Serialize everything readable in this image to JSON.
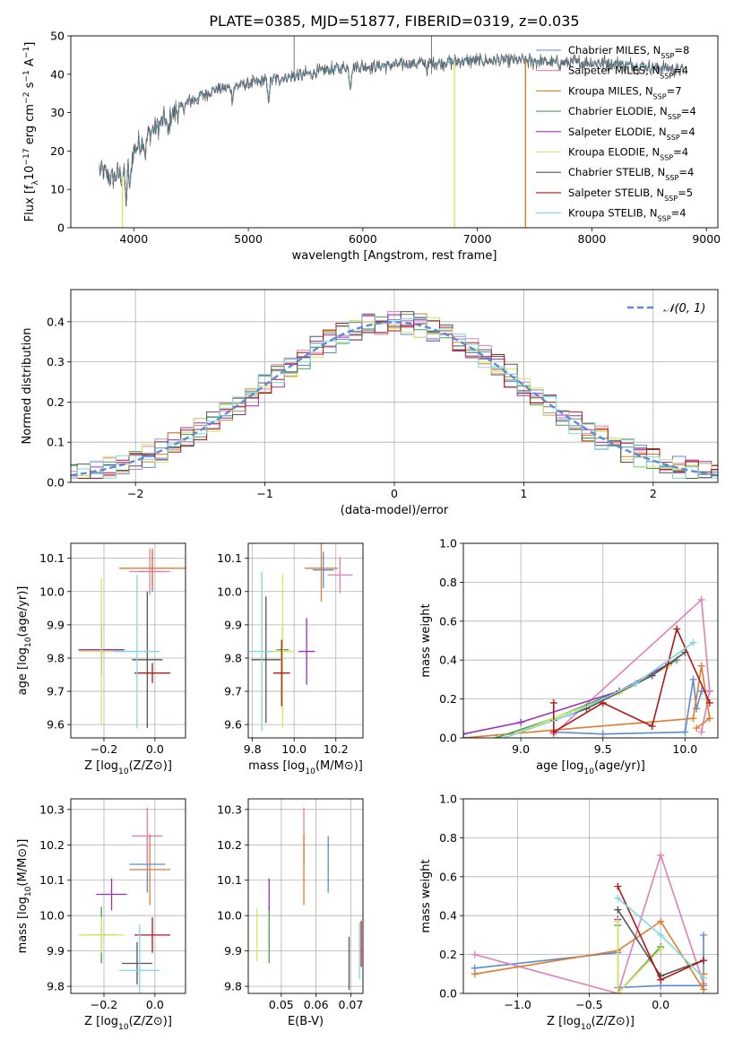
{
  "page_title": "PLATE=0385, MJD=51877, FIBERID=0319, z=0.035",
  "colors": {
    "chabrier_miles": "#5b8bd6",
    "salpeter_miles": "#e07fb7",
    "kroupa_miles": "#e07b2e",
    "chabrier_elodie": "#4f9a4f",
    "salpeter_elodie": "#9a2fc4",
    "kroupa_elodie": "#d4e85a",
    "chabrier_stelib": "#555555",
    "salpeter_stelib": "#b01818",
    "kroupa_stelib": "#7fd7e0",
    "normal_curve": "#5b8bd6",
    "grid": "#b0b0b0"
  },
  "legend_models": [
    {
      "key": "chabrier_miles",
      "label": "Chabrier MILES, N",
      "sub": "SSP",
      "count": "=8"
    },
    {
      "key": "salpeter_miles",
      "label": "Salpeter MILES, N",
      "sub": "SSP",
      "count": "=4"
    },
    {
      "key": "kroupa_miles",
      "label": "Kroupa MILES, N",
      "sub": "SSP",
      "count": "=7"
    },
    {
      "key": "chabrier_elodie",
      "label": "Chabrier ELODIE, N",
      "sub": "SSP",
      "count": "=4"
    },
    {
      "key": "salpeter_elodie",
      "label": "Salpeter ELODIE, N",
      "sub": "SSP",
      "count": "=4"
    },
    {
      "key": "kroupa_elodie",
      "label": "Kroupa ELODIE, N",
      "sub": "SSP",
      "count": "=4"
    },
    {
      "key": "chabrier_stelib",
      "label": "Chabrier STELIB, N",
      "sub": "SSP",
      "count": "=4"
    },
    {
      "key": "salpeter_stelib",
      "label": "Salpeter STELIB, N",
      "sub": "SSP",
      "count": "=5"
    },
    {
      "key": "kroupa_stelib",
      "label": "Kroupa STELIB, N",
      "sub": "SSP",
      "count": "=4"
    }
  ],
  "chart_data": [
    {
      "id": "spectrum",
      "type": "line",
      "xlabel": "wavelength [Angstrom, rest frame]",
      "ylabel": "Flux [f_λ10^-17 erg cm^-2 s^-1 A^-1]",
      "xlim": [
        3450,
        9100
      ],
      "ylim": [
        0,
        50
      ],
      "xticks": [
        4000,
        5000,
        6000,
        7000,
        8000,
        9000
      ],
      "yticks": [
        0,
        10,
        20,
        30,
        40,
        50
      ],
      "grid": false,
      "legend_position": "top-right",
      "continuum": {
        "x": [
          3700,
          3800,
          3900,
          4000,
          4100,
          4200,
          4300,
          4500,
          4700,
          4900,
          5100,
          5300,
          5500,
          5700,
          5900,
          6100,
          6300,
          6500,
          6700,
          6900,
          7100,
          7300,
          7500,
          7700,
          7900,
          8100,
          8300,
          8500,
          8700,
          8800
        ],
        "y": [
          15,
          13,
          14,
          20,
          24,
          26,
          29,
          33,
          36,
          37,
          38,
          39,
          40,
          41,
          42,
          42,
          42.5,
          43,
          43,
          43.5,
          43.5,
          43.5,
          43.5,
          43,
          43,
          43,
          42.5,
          42,
          41.5,
          41
        ]
      },
      "absorption_features": [
        {
          "x": 3933,
          "depth": 9
        },
        {
          "x": 3968,
          "depth": 8
        },
        {
          "x": 4101,
          "depth": 5
        },
        {
          "x": 4300,
          "depth": 5
        },
        {
          "x": 4861,
          "depth": 3
        },
        {
          "x": 5175,
          "depth": 5
        },
        {
          "x": 5890,
          "depth": 5
        },
        {
          "x": 6563,
          "depth": 2
        }
      ],
      "drop_lines": [
        {
          "x": 3900,
          "model": "kroupa_elodie"
        },
        {
          "x": 6800,
          "model": "kroupa_elodie"
        },
        {
          "x": 7420,
          "model": "kroupa_miles"
        }
      ]
    },
    {
      "id": "residuals",
      "type": "histogram",
      "xlabel": "(data-model)/error",
      "ylabel": "Normed distribution",
      "xlim": [
        -2.5,
        2.5
      ],
      "ylim": [
        0,
        0.48
      ],
      "xticks": [
        -2,
        -1,
        0,
        1,
        2
      ],
      "yticks": [
        0.0,
        0.1,
        0.2,
        0.3,
        0.4
      ],
      "grid": true,
      "legend_position": "top-right",
      "legend_label": "𝒩(0, 1)",
      "bin_width": 0.1
    },
    {
      "id": "z_vs_age",
      "type": "errorbar",
      "xlabel": "Z [log10(Z/Z⊙)]",
      "ylabel": "age  [log10(age/yr)]",
      "xlim": [
        -0.33,
        0.12
      ],
      "ylim": [
        9.56,
        10.145
      ],
      "xticks": [
        -0.2,
        0.0
      ],
      "yticks": [
        9.6,
        9.7,
        9.8,
        9.9,
        10.0,
        10.1
      ],
      "grid": true,
      "points": [
        {
          "model": "chabrier_miles",
          "x": -0.01,
          "y": 10.06,
          "xerr": 0.05,
          "yerr": 0.06
        },
        {
          "model": "salpeter_miles",
          "x": -0.02,
          "y": 10.06,
          "xerr": 0.08,
          "yerr": 0.07
        },
        {
          "model": "kroupa_miles",
          "x": -0.01,
          "y": 10.07,
          "xerr": 0.13,
          "yerr": 0.06
        },
        {
          "model": "chabrier_elodie",
          "x": -0.21,
          "y": 9.825,
          "xerr": 0.09,
          "yerr": 0.075
        },
        {
          "model": "salpeter_elodie",
          "x": -0.21,
          "y": 9.825,
          "xerr": 0.09,
          "yerr": 0.08
        },
        {
          "model": "kroupa_elodie",
          "x": -0.21,
          "y": 9.82,
          "xerr": 0.09,
          "yerr": 0.22
        },
        {
          "model": "chabrier_stelib",
          "x": -0.03,
          "y": 9.795,
          "xerr": 0.06,
          "yerr": 0.205
        },
        {
          "model": "salpeter_stelib",
          "x": -0.01,
          "y": 9.755,
          "xerr": 0.07,
          "yerr": 0.03
        },
        {
          "model": "kroupa_stelib",
          "x": -0.07,
          "y": 9.82,
          "xerr": 0.09,
          "yerr": 0.23
        }
      ]
    },
    {
      "id": "mass_vs_age",
      "type": "errorbar",
      "xlabel": "mass [log10(M/M⊙)]",
      "ylabel": "",
      "xlim": [
        9.78,
        10.33
      ],
      "ylim": [
        9.56,
        10.145
      ],
      "xticks": [
        9.8,
        10.0,
        10.2
      ],
      "yticks": [
        9.6,
        9.7,
        9.8,
        9.9,
        10.0,
        10.1
      ],
      "grid": true,
      "points": [
        {
          "model": "chabrier_miles",
          "x": 10.14,
          "y": 10.065,
          "xerr": 0.05,
          "yerr": 0.055
        },
        {
          "model": "salpeter_miles",
          "x": 10.22,
          "y": 10.05,
          "xerr": 0.06,
          "yerr": 0.055
        },
        {
          "model": "kroupa_miles",
          "x": 10.13,
          "y": 10.07,
          "xerr": 0.08,
          "yerr": 0.1
        },
        {
          "model": "chabrier_elodie",
          "x": 9.945,
          "y": 9.825,
          "xerr": 0.03,
          "yerr": 0.07
        },
        {
          "model": "salpeter_elodie",
          "x": 10.06,
          "y": 9.82,
          "xerr": 0.04,
          "yerr": 0.1
        },
        {
          "model": "kroupa_elodie",
          "x": 9.945,
          "y": 9.82,
          "xerr": 0.06,
          "yerr": 0.23
        },
        {
          "model": "chabrier_stelib",
          "x": 9.865,
          "y": 9.795,
          "xerr": 0.07,
          "yerr": 0.19
        },
        {
          "model": "salpeter_stelib",
          "x": 9.94,
          "y": 9.755,
          "xerr": 0.04,
          "yerr": 0.1
        },
        {
          "model": "kroupa_stelib",
          "x": 9.845,
          "y": 9.82,
          "xerr": 0.06,
          "yerr": 0.24
        }
      ]
    },
    {
      "id": "age_vs_weight",
      "type": "line",
      "xlabel": "age  [log10(age/yr)]",
      "ylabel": "mass weight",
      "xlim": [
        8.65,
        10.2
      ],
      "ylim": [
        0,
        1.0
      ],
      "xticks": [
        9.0,
        9.5,
        10.0
      ],
      "yticks": [
        0.0,
        0.2,
        0.4,
        0.6,
        0.8,
        1.0
      ],
      "grid": true,
      "series": [
        {
          "model": "chabrier_miles",
          "points": [
            [
              9.2,
              0.03
            ],
            [
              9.5,
              0.02
            ],
            [
              10.0,
              0.03
            ],
            [
              10.05,
              0.3
            ],
            [
              10.07,
              0.15
            ],
            [
              10.1,
              0.24
            ],
            [
              10.15,
              0.24
            ]
          ]
        },
        {
          "model": "salpeter_miles",
          "points": [
            [
              9.2,
              0.02
            ],
            [
              10.1,
              0.71
            ],
            [
              10.15,
              0.24
            ],
            [
              10.1,
              0.03
            ]
          ]
        },
        {
          "model": "kroupa_miles",
          "points": [
            [
              8.65,
              0.0
            ],
            [
              9.2,
              0.04
            ],
            [
              10.05,
              0.1
            ],
            [
              10.1,
              0.37
            ],
            [
              10.15,
              0.1
            ],
            [
              10.07,
              0.05
            ]
          ]
        },
        {
          "model": "chabrier_elodie",
          "points": [
            [
              8.85,
              0.0
            ],
            [
              9.2,
              0.1
            ],
            [
              9.6,
              0.24
            ],
            [
              9.95,
              0.4
            ]
          ]
        },
        {
          "model": "salpeter_elodie",
          "points": [
            [
              8.65,
              0.02
            ],
            [
              9.0,
              0.08
            ],
            [
              9.6,
              0.24
            ],
            [
              9.9,
              0.38
            ]
          ]
        },
        {
          "model": "kroupa_elodie",
          "points": [
            [
              8.9,
              0.0
            ],
            [
              9.2,
              0.1
            ],
            [
              9.6,
              0.23
            ],
            [
              9.9,
              0.37
            ]
          ]
        },
        {
          "model": "chabrier_stelib",
          "points": [
            [
              9.2,
              0.09
            ],
            [
              9.4,
              0.15
            ],
            [
              9.8,
              0.32
            ],
            [
              10.0,
              0.44
            ]
          ]
        },
        {
          "model": "salpeter_stelib",
          "points": [
            [
              9.2,
              0.18
            ],
            [
              9.2,
              0.03
            ],
            [
              9.5,
              0.18
            ],
            [
              9.8,
              0.06
            ],
            [
              9.95,
              0.56
            ],
            [
              10.15,
              0.18
            ]
          ]
        },
        {
          "model": "kroupa_stelib",
          "points": [
            [
              8.9,
              0.0
            ],
            [
              9.3,
              0.12
            ],
            [
              9.7,
              0.28
            ],
            [
              10.05,
              0.49
            ]
          ]
        }
      ]
    },
    {
      "id": "z_vs_mass",
      "type": "errorbar",
      "xlabel": "Z [log10(Z/Z⊙)]",
      "ylabel": "mass [log10(M/M⊙)]",
      "xlim": [
        -0.33,
        0.12
      ],
      "ylim": [
        9.78,
        10.33
      ],
      "xticks": [
        -0.2,
        0.0
      ],
      "yticks": [
        9.8,
        9.9,
        10.0,
        10.1,
        10.2,
        10.3
      ],
      "grid": true,
      "points": [
        {
          "model": "chabrier_miles",
          "x": -0.03,
          "y": 10.145,
          "xerr": 0.07,
          "yerr": 0.08
        },
        {
          "model": "salpeter_miles",
          "x": -0.03,
          "y": 10.225,
          "xerr": 0.06,
          "yerr": 0.08
        },
        {
          "model": "kroupa_miles",
          "x": -0.02,
          "y": 10.13,
          "xerr": 0.08,
          "yerr": 0.1
        },
        {
          "model": "chabrier_elodie",
          "x": -0.21,
          "y": 9.945,
          "xerr": 0.06,
          "yerr": 0.08
        },
        {
          "model": "salpeter_elodie",
          "x": -0.17,
          "y": 10.06,
          "xerr": 0.06,
          "yerr": 0.045
        },
        {
          "model": "kroupa_elodie",
          "x": -0.21,
          "y": 9.945,
          "xerr": 0.09,
          "yerr": 0.05
        },
        {
          "model": "chabrier_stelib",
          "x": -0.07,
          "y": 9.865,
          "xerr": 0.06,
          "yerr": 0.06
        },
        {
          "model": "salpeter_stelib",
          "x": -0.01,
          "y": 9.945,
          "xerr": 0.07,
          "yerr": 0.05
        },
        {
          "model": "kroupa_stelib",
          "x": -0.06,
          "y": 9.845,
          "xerr": 0.08,
          "yerr": 0.13
        }
      ]
    },
    {
      "id": "ebv_vs_mass",
      "type": "errorbar",
      "xlabel": "E(B-V)",
      "ylabel": "",
      "xlim": [
        0.0405,
        0.0735
      ],
      "ylim": [
        9.78,
        10.33
      ],
      "xticks": [
        0.05,
        0.06,
        0.07
      ],
      "yticks": [
        9.8,
        9.9,
        10.0,
        10.1,
        10.2,
        10.3
      ],
      "grid": true,
      "points": [
        {
          "model": "chabrier_miles",
          "x": 0.0635,
          "y": 10.145,
          "xerr": 0.0,
          "yerr": 0.08
        },
        {
          "model": "salpeter_miles",
          "x": 0.0565,
          "y": 10.225,
          "xerr": 0.0,
          "yerr": 0.08
        },
        {
          "model": "kroupa_miles",
          "x": 0.0565,
          "y": 10.13,
          "xerr": 0.0,
          "yerr": 0.1
        },
        {
          "model": "chabrier_elodie",
          "x": 0.0465,
          "y": 9.945,
          "xerr": 0.0,
          "yerr": 0.08
        },
        {
          "model": "salpeter_elodie",
          "x": 0.0465,
          "y": 10.06,
          "xerr": 0.0,
          "yerr": 0.045
        },
        {
          "model": "kroupa_elodie",
          "x": 0.043,
          "y": 9.945,
          "xerr": 0.0,
          "yerr": 0.075
        },
        {
          "model": "chabrier_stelib",
          "x": 0.0695,
          "y": 9.865,
          "xerr": 0.0,
          "yerr": 0.075
        },
        {
          "model": "salpeter_stelib",
          "x": 0.073,
          "y": 9.92,
          "xerr": 0.0,
          "yerr": 0.065
        },
        {
          "model": "kroupa_stelib",
          "x": 0.0725,
          "y": 9.9,
          "xerr": 0.0,
          "yerr": 0.08
        }
      ]
    },
    {
      "id": "z_vs_weight",
      "type": "line",
      "xlabel": "Z [log10(Z/Z⊙)]",
      "ylabel": "mass weight",
      "xlim": [
        -1.38,
        0.4
      ],
      "ylim": [
        0,
        1.0
      ],
      "xticks": [
        -1.0,
        -0.5,
        0.0
      ],
      "yticks": [
        0.0,
        0.2,
        0.4,
        0.6,
        0.8,
        1.0
      ],
      "grid": true,
      "series": [
        {
          "model": "chabrier_miles",
          "points": [
            [
              -1.3,
              0.13
            ],
            [
              -0.3,
              0.21
            ],
            [
              -0.3,
              0.03
            ],
            [
              0.0,
              0.04
            ],
            [
              0.3,
              0.04
            ],
            [
              0.3,
              0.3
            ]
          ]
        },
        {
          "model": "salpeter_miles",
          "points": [
            [
              -1.3,
              0.2
            ],
            [
              -0.3,
              0.0
            ],
            [
              0.0,
              0.71
            ],
            [
              0.3,
              0.05
            ]
          ]
        },
        {
          "model": "kroupa_miles",
          "points": [
            [
              -1.3,
              0.1
            ],
            [
              -0.3,
              0.22
            ],
            [
              0.0,
              0.37
            ],
            [
              0.3,
              0.02
            ],
            [
              0.3,
              0.1
            ]
          ]
        },
        {
          "model": "chabrier_elodie",
          "points": [
            [
              -0.3,
              0.35
            ],
            [
              -0.3,
              0.0
            ],
            [
              0.0,
              0.24
            ]
          ]
        },
        {
          "model": "salpeter_elodie",
          "points": [
            [
              -0.3,
              0.38
            ],
            [
              -0.3,
              0.0
            ],
            [
              0.0,
              0.23
            ]
          ]
        },
        {
          "model": "kroupa_elodie",
          "points": [
            [
              -0.3,
              0.37
            ],
            [
              -0.3,
              0.0
            ],
            [
              0.0,
              0.23
            ]
          ]
        },
        {
          "model": "chabrier_stelib",
          "points": [
            [
              -0.3,
              0.43
            ],
            [
              0.0,
              0.09
            ],
            [
              0.3,
              0.17
            ]
          ]
        },
        {
          "model": "salpeter_stelib",
          "points": [
            [
              -0.3,
              0.55
            ],
            [
              0.0,
              0.07
            ],
            [
              0.3,
              0.17
            ]
          ]
        },
        {
          "model": "kroupa_stelib",
          "points": [
            [
              -0.3,
              0.49
            ],
            [
              0.0,
              0.3
            ],
            [
              0.3,
              0.08
            ]
          ]
        }
      ]
    }
  ]
}
